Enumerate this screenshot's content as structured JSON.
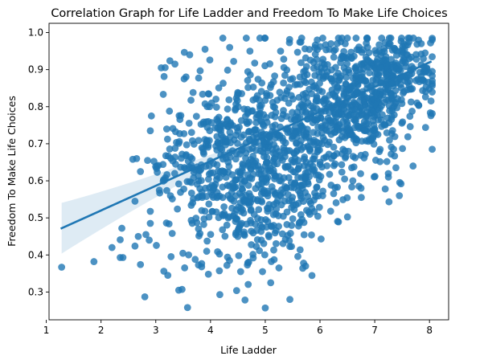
{
  "chart_data": {
    "type": "scatter",
    "title": "Correlation Graph for Life Ladder and Freedom To Make Life Choices",
    "xlabel": "Life Ladder",
    "ylabel": "Freedom To Make Life Choices",
    "xlim": [
      1.05,
      8.35
    ],
    "ylim": [
      0.225,
      1.025
    ],
    "xticks": [
      1,
      2,
      3,
      4,
      5,
      6,
      7,
      8
    ],
    "yticks": [
      0.3,
      0.4,
      0.5,
      0.6,
      0.7,
      0.8,
      0.9,
      1.0
    ],
    "xtick_labels": [
      "1",
      "2",
      "3",
      "4",
      "5",
      "6",
      "7",
      "8"
    ],
    "ytick_labels": [
      "0.3",
      "0.4",
      "0.5",
      "0.6",
      "0.7",
      "0.8",
      "0.9",
      "1.0"
    ],
    "grid": false,
    "legend": "none",
    "point_color": "#1f77b4",
    "point_alpha": 0.8,
    "regression": {
      "start": [
        1.28,
        0.472
      ],
      "end": [
        8.02,
        0.921
      ],
      "ci_color": "#1f77b4",
      "ci_alpha": 0.15
    },
    "outliers": [
      [
        1.28,
        0.367
      ],
      [
        1.87,
        0.382
      ],
      [
        2.2,
        0.42
      ],
      [
        2.35,
        0.393
      ],
      [
        2.4,
        0.393
      ],
      [
        2.38,
        0.472
      ],
      [
        2.35,
        0.441
      ],
      [
        2.62,
        0.424
      ],
      [
        2.68,
        0.45
      ],
      [
        2.72,
        0.374
      ],
      [
        2.8,
        0.287
      ],
      [
        2.82,
        0.455
      ],
      [
        2.88,
        0.44
      ],
      [
        3.22,
        0.345
      ],
      [
        3.3,
        0.458
      ],
      [
        3.42,
        0.305
      ],
      [
        3.48,
        0.307
      ],
      [
        3.58,
        0.258
      ],
      [
        3.6,
        0.4
      ],
      [
        3.72,
        0.388
      ],
      [
        3.78,
        0.373
      ],
      [
        4.17,
        0.293
      ],
      [
        4.3,
        0.372
      ],
      [
        4.55,
        0.355
      ],
      [
        4.78,
        0.392
      ],
      [
        4.95,
        0.355
      ],
      [
        5.1,
        0.325
      ],
      [
        5.25,
        0.365
      ],
      [
        5.45,
        0.28
      ],
      [
        5.0,
        0.257
      ],
      [
        5.7,
        0.378
      ],
      [
        6.02,
        0.443
      ],
      [
        2.58,
        0.658
      ],
      [
        2.65,
        0.66
      ],
      [
        2.72,
        0.625
      ],
      [
        2.85,
        0.655
      ],
      [
        2.92,
        0.775
      ],
      [
        3.1,
        0.905
      ],
      [
        3.02,
        0.64
      ],
      [
        2.62,
        0.545
      ],
      [
        7.45,
        0.56
      ],
      [
        7.48,
        0.592
      ],
      [
        7.7,
        0.64
      ],
      [
        7.55,
        0.925
      ],
      [
        7.85,
        0.97
      ],
      [
        8.02,
        0.972
      ],
      [
        6.5,
        0.985
      ],
      [
        5.95,
        0.98
      ],
      [
        5.28,
        0.95
      ],
      [
        4.35,
        0.96
      ],
      [
        3.9,
        0.955
      ],
      [
        3.62,
        0.94
      ],
      [
        3.35,
        0.915
      ],
      [
        6.75,
        0.58
      ],
      [
        6.6,
        0.6
      ],
      [
        7.3,
        0.672
      ],
      [
        6.45,
        0.605
      ],
      [
        7.25,
        0.61
      ],
      [
        4.72,
        0.95
      ],
      [
        6.2,
        0.97
      ]
    ],
    "clusters": [
      {
        "cx": 5.0,
        "cy": 0.7,
        "sx": 0.72,
        "sy": 0.115,
        "n": 420
      },
      {
        "cx": 6.4,
        "cy": 0.82,
        "sx": 0.52,
        "sy": 0.085,
        "n": 380
      },
      {
        "cx": 7.35,
        "cy": 0.89,
        "sx": 0.38,
        "sy": 0.05,
        "n": 230
      },
      {
        "cx": 4.2,
        "cy": 0.63,
        "sx": 0.48,
        "sy": 0.12,
        "n": 150
      },
      {
        "cx": 3.6,
        "cy": 0.66,
        "sx": 0.38,
        "sy": 0.11,
        "n": 70
      },
      {
        "cx": 4.9,
        "cy": 0.49,
        "sx": 0.55,
        "sy": 0.07,
        "n": 120
      },
      {
        "cx": 5.6,
        "cy": 0.62,
        "sx": 0.45,
        "sy": 0.09,
        "n": 100
      },
      {
        "cx": 6.9,
        "cy": 0.75,
        "sx": 0.45,
        "sy": 0.08,
        "n": 110
      }
    ]
  }
}
